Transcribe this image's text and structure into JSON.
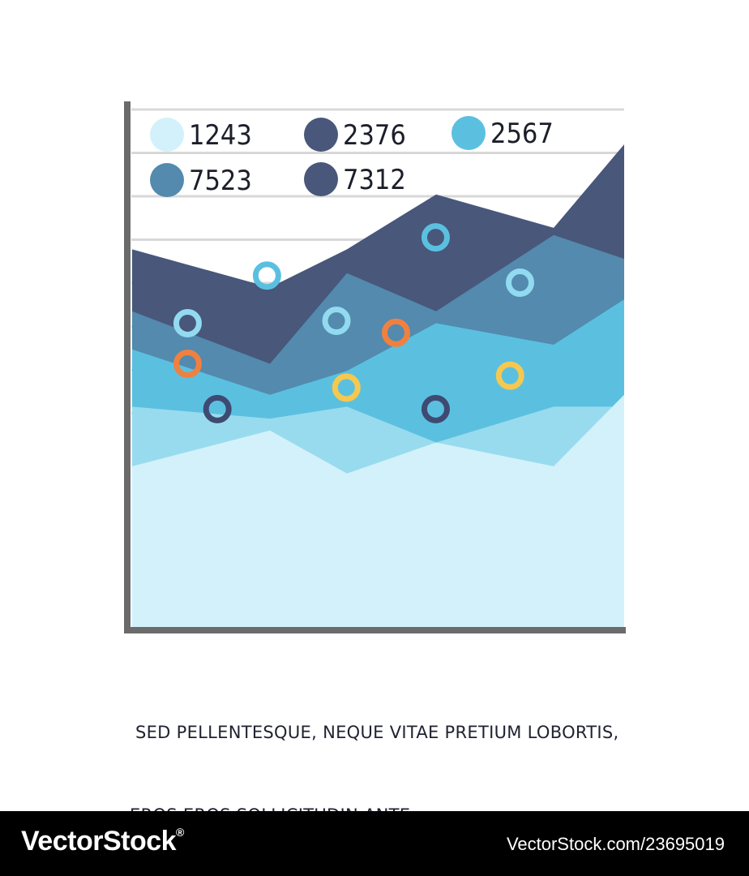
{
  "chart_data": {
    "type": "area",
    "legend": [
      {
        "label": "1243",
        "color": "#d3f1fa"
      },
      {
        "label": "2376",
        "color": "#48577a"
      },
      {
        "label": "2567",
        "color": "#5bc0df"
      },
      {
        "label": "7523",
        "color": "#538aae"
      },
      {
        "label": "7312",
        "color": "#48577a"
      }
    ],
    "series": [
      {
        "color": "#48577a",
        "values": [
          0.56,
          0.4,
          0.56,
          0.79,
          0.65,
          1.0
        ]
      },
      {
        "color": "#538aae",
        "values": [
          0.3,
          0.08,
          0.46,
          0.3,
          0.62,
          0.52
        ]
      },
      {
        "color": "#5bc0df",
        "values": [
          0.14,
          -0.05,
          0.05,
          0.25,
          0.16,
          0.35
        ]
      },
      {
        "color": "#98dbee",
        "values": [
          -0.1,
          -0.15,
          -0.1,
          -0.25,
          -0.1,
          -0.1
        ]
      },
      {
        "color": "#d3f1fa",
        "values": [
          -0.35,
          -0.2,
          -0.38,
          -0.25,
          -0.35,
          -0.05
        ]
      }
    ],
    "markers": [
      {
        "x": 0.12,
        "y": 0.25,
        "color": "#92daf0"
      },
      {
        "x": 0.28,
        "y": 0.45,
        "color": "#5bc0df"
      },
      {
        "x": 0.42,
        "y": 0.26,
        "color": "#92daf0"
      },
      {
        "x": 0.62,
        "y": 0.61,
        "color": "#5bc0df"
      },
      {
        "x": 0.79,
        "y": 0.42,
        "color": "#92daf0"
      },
      {
        "x": 0.12,
        "y": 0.08,
        "color": "#f08040"
      },
      {
        "x": 0.54,
        "y": 0.21,
        "color": "#f08040"
      },
      {
        "x": 0.44,
        "y": -0.02,
        "color": "#f5c850"
      },
      {
        "x": 0.77,
        "y": 0.03,
        "color": "#f5c850"
      },
      {
        "x": 0.18,
        "y": -0.11,
        "color": "#3e4a72"
      },
      {
        "x": 0.62,
        "y": -0.11,
        "color": "#3e4a72"
      }
    ],
    "gridlines": 8,
    "grid": true
  },
  "caption": {
    "line1": " SED PELLENTESQUE, NEQUE VITAE PRETIUM LOBORTIS,",
    "line2": "EROS EROS SOLLICITUDIN ANTE"
  },
  "footer": {
    "brand": "VectorStock",
    "registered": "®",
    "id": "VectorStock.com/23695019"
  }
}
